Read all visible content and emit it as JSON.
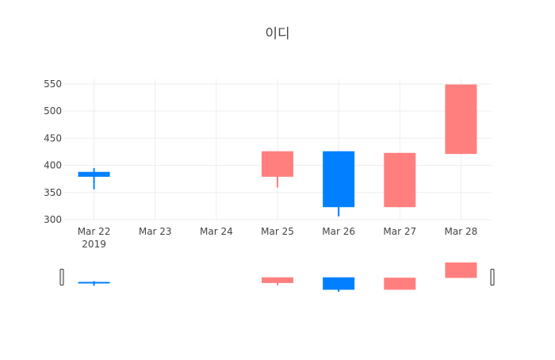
{
  "colors": {
    "increasing": "#ff7f7f",
    "decreasing": "#0080ff",
    "grid": "#eeeeee",
    "text": "#444444",
    "background": "#ffffff"
  },
  "chart_data": {
    "type": "candlestick",
    "title": "이디",
    "xlabel": "",
    "ylabel": "",
    "categories": [
      "Mar 22",
      "Mar 23",
      "Mar 24",
      "Mar 25",
      "Mar 26",
      "Mar 27",
      "Mar 28"
    ],
    "x_tick_sublabels": [
      "2019",
      "",
      "",
      "",
      "",
      "",
      ""
    ],
    "ylim": [
      300,
      560
    ],
    "y_ticks": [
      300,
      350,
      400,
      450,
      500,
      550
    ],
    "grid": true,
    "range_slider": true,
    "candles": [
      {
        "date": "Mar 22",
        "open": 388,
        "high": 395,
        "low": 356,
        "close": 379
      },
      {
        "date": "Mar 25",
        "open": 379,
        "high": 426,
        "low": 359,
        "close": 426
      },
      {
        "date": "Mar 26",
        "open": 426,
        "high": 426,
        "low": 306,
        "close": 323
      },
      {
        "date": "Mar 27",
        "open": 323,
        "high": 423,
        "low": 323,
        "close": 423
      },
      {
        "date": "Mar 28",
        "open": 421,
        "high": 549,
        "low": 421,
        "close": 549
      }
    ]
  }
}
